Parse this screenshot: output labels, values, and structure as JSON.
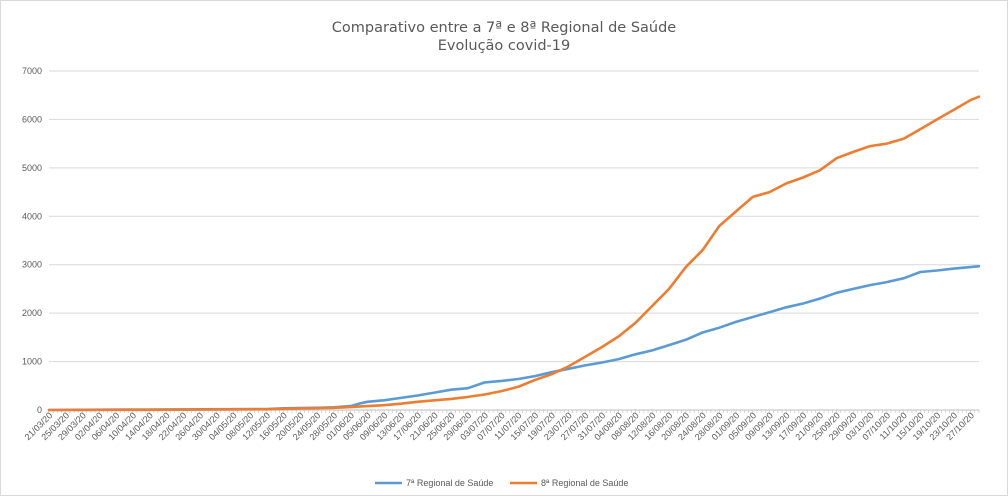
{
  "chart_data": {
    "type": "line",
    "title": "Comparativo entre a 7ª e 8ª Regional de Saúde",
    "subtitle": "Evolução covid-19",
    "xlabel": "",
    "ylabel": "",
    "ylim": [
      0,
      7000
    ],
    "yticks": [
      "0",
      "1000",
      "2000",
      "3000",
      "4000",
      "5000",
      "6000",
      "7000"
    ],
    "grid": true,
    "legend_position": "bottom",
    "x_ticks": [
      "21/03/20",
      "25/03/20",
      "29/03/20",
      "02/04/20",
      "06/04/20",
      "10/04/20",
      "14/04/20",
      "18/04/20",
      "22/04/20",
      "26/04/20",
      "30/04/20",
      "04/05/20",
      "08/05/20",
      "12/05/20",
      "16/05/20",
      "20/05/20",
      "24/05/20",
      "28/05/20",
      "01/06/20",
      "05/06/20",
      "09/06/20",
      "13/06/20",
      "17/06/20",
      "21/06/20",
      "25/06/20",
      "29/06/20",
      "03/07/20",
      "07/07/20",
      "11/07/20",
      "15/07/20",
      "19/07/20",
      "23/07/20",
      "27/07/20",
      "31/07/20",
      "04/08/20",
      "08/08/20",
      "12/08/20",
      "16/08/20",
      "20/08/20",
      "24/08/20",
      "28/08/20",
      "01/09/20",
      "05/09/20",
      "09/09/20",
      "13/09/20",
      "17/09/20",
      "21/09/20",
      "25/09/20",
      "29/09/20",
      "03/10/20",
      "07/10/20",
      "11/10/20",
      "15/10/20",
      "19/10/20",
      "23/10/20",
      "27/10/20"
    ],
    "series": [
      {
        "name": "7ª Regional de Saúde",
        "color": "#5b9bd5",
        "points": [
          {
            "x": "21/03/20",
            "y": 0
          },
          {
            "x": "29/03/20",
            "y": 5
          },
          {
            "x": "14/04/20",
            "y": 10
          },
          {
            "x": "12/05/20",
            "y": 20
          },
          {
            "x": "16/05/20",
            "y": 35
          },
          {
            "x": "24/05/20",
            "y": 45
          },
          {
            "x": "28/05/20",
            "y": 55
          },
          {
            "x": "01/06/20",
            "y": 80
          },
          {
            "x": "03/06/20",
            "y": 130
          },
          {
            "x": "05/06/20",
            "y": 170
          },
          {
            "x": "09/06/20",
            "y": 200
          },
          {
            "x": "13/06/20",
            "y": 250
          },
          {
            "x": "17/06/20",
            "y": 300
          },
          {
            "x": "21/06/20",
            "y": 360
          },
          {
            "x": "25/06/20",
            "y": 420
          },
          {
            "x": "29/06/20",
            "y": 450
          },
          {
            "x": "03/07/20",
            "y": 570
          },
          {
            "x": "07/07/20",
            "y": 600
          },
          {
            "x": "11/07/20",
            "y": 640
          },
          {
            "x": "15/07/20",
            "y": 700
          },
          {
            "x": "19/07/20",
            "y": 780
          },
          {
            "x": "23/07/20",
            "y": 850
          },
          {
            "x": "27/07/20",
            "y": 920
          },
          {
            "x": "31/07/20",
            "y": 980
          },
          {
            "x": "04/08/20",
            "y": 1050
          },
          {
            "x": "08/08/20",
            "y": 1150
          },
          {
            "x": "12/08/20",
            "y": 1230
          },
          {
            "x": "16/08/20",
            "y": 1340
          },
          {
            "x": "20/08/20",
            "y": 1450
          },
          {
            "x": "24/08/20",
            "y": 1600
          },
          {
            "x": "28/08/20",
            "y": 1700
          },
          {
            "x": "01/09/20",
            "y": 1820
          },
          {
            "x": "05/09/20",
            "y": 1920
          },
          {
            "x": "09/09/20",
            "y": 2020
          },
          {
            "x": "13/09/20",
            "y": 2120
          },
          {
            "x": "17/09/20",
            "y": 2200
          },
          {
            "x": "21/09/20",
            "y": 2300
          },
          {
            "x": "25/09/20",
            "y": 2420
          },
          {
            "x": "29/09/20",
            "y": 2500
          },
          {
            "x": "03/10/20",
            "y": 2580
          },
          {
            "x": "07/10/20",
            "y": 2640
          },
          {
            "x": "11/10/20",
            "y": 2720
          },
          {
            "x": "15/10/20",
            "y": 2850
          },
          {
            "x": "19/10/20",
            "y": 2880
          },
          {
            "x": "23/10/20",
            "y": 2920
          },
          {
            "x": "27/10/20",
            "y": 2950
          },
          {
            "x": "29/10/20",
            "y": 2970
          }
        ]
      },
      {
        "name": "8ª Regional de Saúde",
        "color": "#ed7d31",
        "points": [
          {
            "x": "21/03/20",
            "y": 0
          },
          {
            "x": "14/04/20",
            "y": 5
          },
          {
            "x": "12/05/20",
            "y": 15
          },
          {
            "x": "20/05/20",
            "y": 30
          },
          {
            "x": "28/05/20",
            "y": 45
          },
          {
            "x": "01/06/20",
            "y": 60
          },
          {
            "x": "05/06/20",
            "y": 80
          },
          {
            "x": "09/06/20",
            "y": 100
          },
          {
            "x": "13/06/20",
            "y": 130
          },
          {
            "x": "17/06/20",
            "y": 170
          },
          {
            "x": "21/06/20",
            "y": 200
          },
          {
            "x": "25/06/20",
            "y": 230
          },
          {
            "x": "29/06/20",
            "y": 270
          },
          {
            "x": "03/07/20",
            "y": 320
          },
          {
            "x": "07/07/20",
            "y": 390
          },
          {
            "x": "11/07/20",
            "y": 480
          },
          {
            "x": "15/07/20",
            "y": 620
          },
          {
            "x": "19/07/20",
            "y": 740
          },
          {
            "x": "23/07/20",
            "y": 900
          },
          {
            "x": "27/07/20",
            "y": 1100
          },
          {
            "x": "31/07/20",
            "y": 1300
          },
          {
            "x": "04/08/20",
            "y": 1520
          },
          {
            "x": "08/08/20",
            "y": 1800
          },
          {
            "x": "12/08/20",
            "y": 2150
          },
          {
            "x": "16/08/20",
            "y": 2500
          },
          {
            "x": "20/08/20",
            "y": 2950
          },
          {
            "x": "24/08/20",
            "y": 3300
          },
          {
            "x": "28/08/20",
            "y": 3800
          },
          {
            "x": "01/09/20",
            "y": 4100
          },
          {
            "x": "05/09/20",
            "y": 4400
          },
          {
            "x": "09/09/20",
            "y": 4500
          },
          {
            "x": "13/09/20",
            "y": 4680
          },
          {
            "x": "17/09/20",
            "y": 4800
          },
          {
            "x": "21/09/20",
            "y": 4950
          },
          {
            "x": "25/09/20",
            "y": 5200
          },
          {
            "x": "29/09/20",
            "y": 5330
          },
          {
            "x": "03/10/20",
            "y": 5450
          },
          {
            "x": "07/10/20",
            "y": 5500
          },
          {
            "x": "11/10/20",
            "y": 5600
          },
          {
            "x": "15/10/20",
            "y": 5800
          },
          {
            "x": "19/10/20",
            "y": 6000
          },
          {
            "x": "23/10/20",
            "y": 6200
          },
          {
            "x": "27/10/20",
            "y": 6400
          },
          {
            "x": "29/10/20",
            "y": 6470
          }
        ]
      }
    ]
  }
}
